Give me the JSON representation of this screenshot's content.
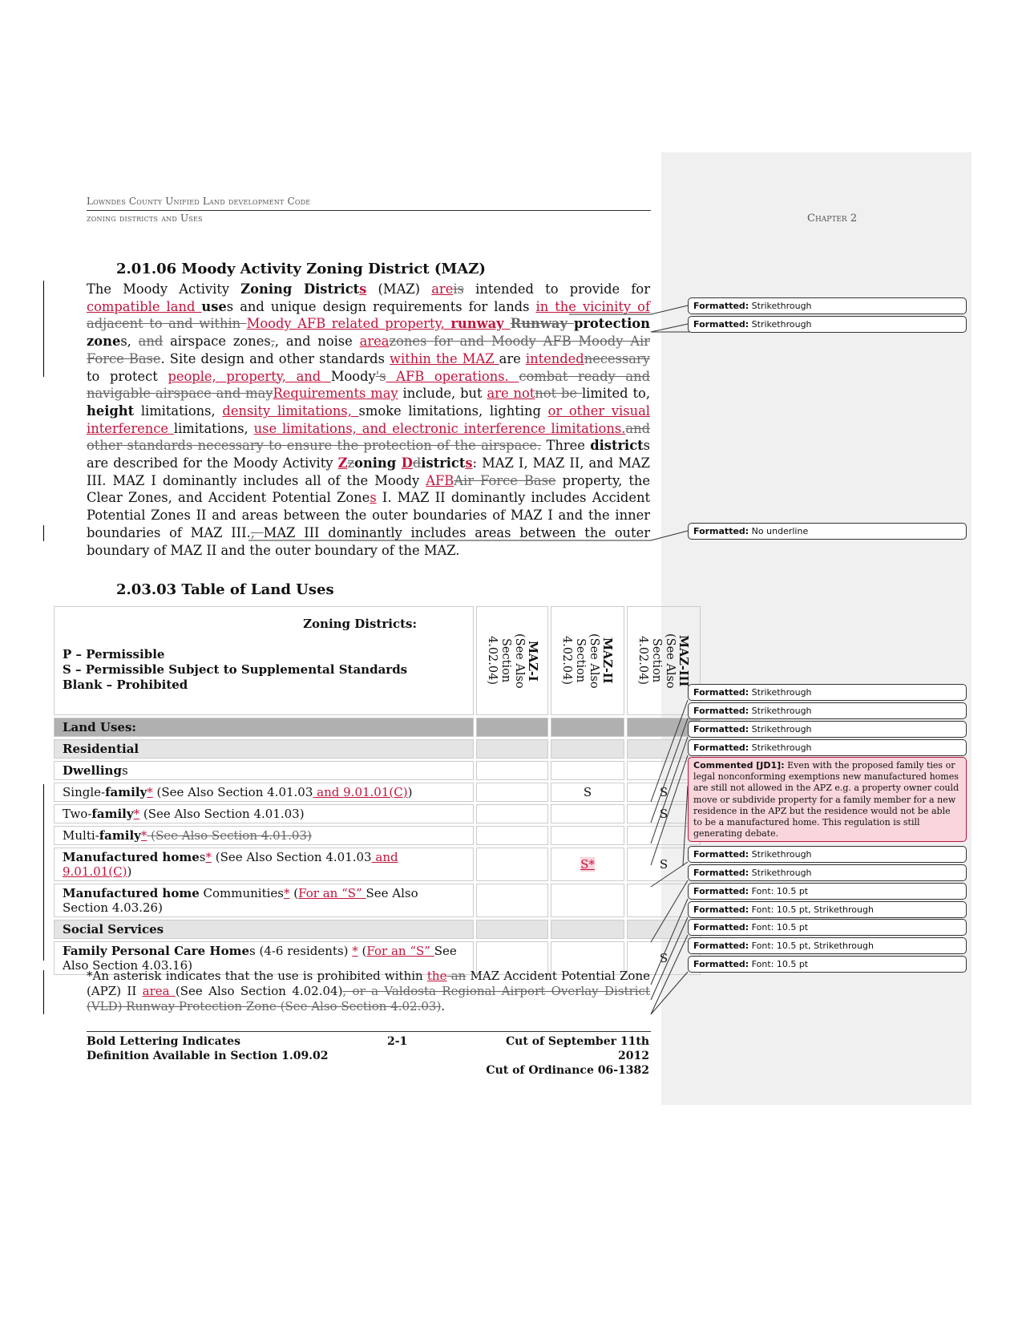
{
  "header": {
    "title": "Lowndes County Unified Land development Code",
    "subtitle": "zoning districts and Uses",
    "chapter": "Chapter 2"
  },
  "section1": {
    "heading": "2.01.06 Moody Activity Zoning District (MAZ)",
    "segments": [
      [
        "n",
        "The Moody Activity "
      ],
      [
        "b",
        "Zoning District"
      ],
      [
        "ib",
        "s"
      ],
      [
        "n",
        " (MAZ) "
      ],
      [
        "i",
        "are"
      ],
      [
        "d",
        "is"
      ],
      [
        "n",
        " intended to provide for "
      ],
      [
        "i",
        "compatible land "
      ],
      [
        "b",
        "use"
      ],
      [
        "n",
        "s and unique design requirements for lands "
      ],
      [
        "i",
        "in the vicinity of "
      ],
      [
        "d",
        " adjacent to and within "
      ],
      [
        "i",
        "Moody AFB related property, "
      ],
      [
        "ib",
        "runway "
      ],
      [
        "db",
        " Runway "
      ],
      [
        "b",
        "protection zone"
      ],
      [
        "n",
        "s, "
      ],
      [
        "d",
        "and"
      ],
      [
        "n",
        " airspace zones"
      ],
      [
        "d",
        ","
      ],
      [
        "n",
        ", and noise "
      ],
      [
        "i",
        "area"
      ],
      [
        "d",
        "zones for and Moody AFB Moody Air Force Base"
      ],
      [
        "n",
        ". Site design and other standards "
      ],
      [
        "i",
        "within the MAZ "
      ],
      [
        "n",
        "are "
      ],
      [
        "i",
        "intended"
      ],
      [
        "d",
        "necessary"
      ],
      [
        "n",
        " to protect "
      ],
      [
        "i",
        "people, property, and "
      ],
      [
        "n",
        "Moody"
      ],
      [
        "d",
        "'s"
      ],
      [
        "i",
        " AFB operations.  "
      ],
      [
        "d",
        " combat ready and navigable airspace and may"
      ],
      [
        "i",
        "Requirements may"
      ],
      [
        "n",
        " include, but "
      ],
      [
        "i",
        "are not"
      ],
      [
        "d",
        "not be "
      ],
      [
        "n",
        "limited to, "
      ],
      [
        "b",
        "height"
      ],
      [
        "n",
        " limitations, "
      ],
      [
        "i",
        "density limitations, "
      ],
      [
        "n",
        "smoke limitations, lighting "
      ],
      [
        "i",
        "or other visual interference "
      ],
      [
        "n",
        "limitations, "
      ],
      [
        "i",
        "use limitations, and electronic interference limitations."
      ],
      [
        "d",
        "and other standards necessary to ensure the protection of the airspace."
      ],
      [
        "n",
        "  Three "
      ],
      [
        "b",
        "district"
      ],
      [
        "n",
        "s are described for the Moody Activity "
      ],
      [
        "ib",
        "Z"
      ],
      [
        "d",
        "z"
      ],
      [
        "b",
        "oning "
      ],
      [
        "ib",
        "D"
      ],
      [
        "d",
        "d"
      ],
      [
        "b",
        "istrict"
      ],
      [
        "ib",
        "s"
      ],
      [
        "n",
        ":  MAZ I, MAZ II, and MAZ III.  MAZ I dominantly includes all of the Moody "
      ],
      [
        "i",
        "AFB"
      ],
      [
        "d",
        "Air Force Base"
      ],
      [
        "n",
        " property, the Clear Zones, and Accident Potential Zone"
      ],
      [
        "i",
        "s"
      ],
      [
        "n",
        " I.  MAZ II dominantly includes Accident Potential Zones II and areas between the outer boundaries of MAZ I and the inner boundaries of MAZ III."
      ],
      [
        "d",
        ", "
      ],
      [
        "n",
        " MAZ III dominantly includes areas between the outer boundary of MAZ II and the outer boundary of the MAZ."
      ]
    ]
  },
  "section2": {
    "heading": "2.03.03 Table of Land Uses"
  },
  "table": {
    "zoning_label": "Zoning Districts:",
    "legend": [
      "P – Permissible",
      "S – Permissible Subject to Supplemental Standards",
      "Blank – Prohibited"
    ],
    "columns": [
      {
        "name": "MAZ-I",
        "note": "(See Also Section 4.02.04)"
      },
      {
        "name": "MAZ-II",
        "note": "(See Also Section 4.02.04)"
      },
      {
        "name": "MAZ-III",
        "note": "(See Also Section 4.02.04)"
      }
    ],
    "rows": [
      {
        "style": "dark",
        "segments": [
          [
            "b",
            "Land Uses:"
          ]
        ],
        "cells": [
          "",
          "",
          ""
        ]
      },
      {
        "style": "light",
        "segments": [
          [
            "b",
            "Residential"
          ]
        ],
        "cells": [
          "",
          "",
          ""
        ]
      },
      {
        "style": "plain",
        "segments": [
          [
            "b",
            "Dwelling"
          ],
          [
            "n",
            "s"
          ]
        ],
        "cells": [
          "",
          "",
          ""
        ]
      },
      {
        "style": "plain",
        "segments": [
          [
            "n",
            "Single-"
          ],
          [
            "b",
            "family"
          ],
          [
            "i",
            "*"
          ],
          [
            "n",
            " (See Also Section 4.01.03"
          ],
          [
            "i",
            " and 9.01.01(C)"
          ],
          [
            "n",
            ")"
          ]
        ],
        "cells": [
          "",
          "S",
          "S"
        ]
      },
      {
        "style": "plain",
        "segments": [
          [
            "n",
            "Two-"
          ],
          [
            "b",
            "family"
          ],
          [
            "i",
            "*"
          ],
          [
            "n",
            " (See Also Section 4.01.03)"
          ]
        ],
        "cells": [
          "",
          "",
          "S"
        ]
      },
      {
        "style": "plain",
        "segments": [
          [
            "n",
            "Multi-"
          ],
          [
            "b",
            "family"
          ],
          [
            "i",
            "*"
          ],
          [
            "d",
            " (See Also Section 4.01.03)"
          ]
        ],
        "cells": [
          "",
          "",
          ""
        ]
      },
      {
        "style": "plain",
        "segments": [
          [
            "b",
            "Manufactured home"
          ],
          [
            "n",
            "s"
          ],
          [
            "i",
            "*"
          ],
          [
            "n",
            " (See Also Section 4.01.03"
          ],
          [
            "i",
            " and 9.01.01(C)"
          ],
          [
            "n",
            ")"
          ]
        ],
        "cells": [
          "",
          "S*",
          "S"
        ]
      },
      {
        "style": "plain",
        "segments": [
          [
            "b",
            "Manufactured home"
          ],
          [
            "n",
            " Communities"
          ],
          [
            "i",
            "*"
          ],
          [
            "n",
            " ("
          ],
          [
            "i",
            "For an “S” "
          ],
          [
            "n",
            "See Also Section 4.03.26)"
          ]
        ],
        "cells": [
          "",
          "",
          ""
        ]
      },
      {
        "style": "light",
        "segments": [
          [
            "b",
            "Social Services"
          ]
        ],
        "cells": [
          "",
          "",
          ""
        ]
      },
      {
        "style": "plain",
        "segments": [
          [
            "b",
            "Family Personal Care Home"
          ],
          [
            "n",
            "s (4-6 residents) "
          ],
          [
            "i",
            "*"
          ],
          [
            "n",
            " ("
          ],
          [
            "i",
            "For an “S” "
          ],
          [
            "n",
            "See Also Section 4.03.16)"
          ]
        ],
        "cells": [
          "",
          "",
          "S"
        ]
      }
    ]
  },
  "footnote": {
    "segments": [
      [
        "n",
        "*An asterisk indicates that the use is prohibited within "
      ],
      [
        "i",
        "the"
      ],
      [
        "d",
        " an"
      ],
      [
        "n",
        " MAZ Accident Potential Zone (APZ) II "
      ],
      [
        "i",
        "area "
      ],
      [
        "n",
        "(See Also Section 4.02.04)"
      ],
      [
        "d",
        ", or a Valdosta Regional Airport Overlay District (VLD) Runway Protection Zone (See Also Section 4.02.03)"
      ],
      [
        "n",
        "."
      ]
    ]
  },
  "footer": {
    "left1": "Bold Lettering Indicates",
    "left2": "Definition Available in Section 1.09.02",
    "page": "2-1",
    "right1": "Cut of September 11th 2012",
    "right2": "Cut of Ordinance 06-1382"
  },
  "balloons": [
    {
      "label": "Formatted:",
      "text": "Strikethrough"
    },
    {
      "label": "Formatted:",
      "text": "Strikethrough"
    },
    {
      "label": "Formatted:",
      "text": "No underline"
    },
    {
      "label": "Formatted:",
      "text": "Strikethrough"
    },
    {
      "label": "Formatted:",
      "text": "Strikethrough"
    },
    {
      "label": "Formatted:",
      "text": "Strikethrough"
    },
    {
      "label": "Formatted:",
      "text": "Strikethrough"
    },
    {
      "label": "Formatted:",
      "text": "Strikethrough"
    },
    {
      "label": "Formatted:",
      "text": "Strikethrough"
    },
    {
      "label": "Formatted:",
      "text": "Font: 10.5 pt"
    },
    {
      "label": "Formatted:",
      "text": "Font: 10.5 pt, Strikethrough"
    },
    {
      "label": "Formatted:",
      "text": "Font: 10.5 pt"
    },
    {
      "label": "Formatted:",
      "text": "Font: 10.5 pt, Strikethrough"
    },
    {
      "label": "Formatted:",
      "text": "Font: 10.5 pt"
    }
  ],
  "comment": {
    "label": "Commented [JD1]:",
    "text": "Even with the proposed family ties or legal nonconforming exemptions new manufactured homes are still not allowed in the APZ e.g. a property owner could move or subdivide property for a family member for a new residence in the APZ but the residence would not be able to be a manufactured home.  This regulation is still generating debate."
  }
}
